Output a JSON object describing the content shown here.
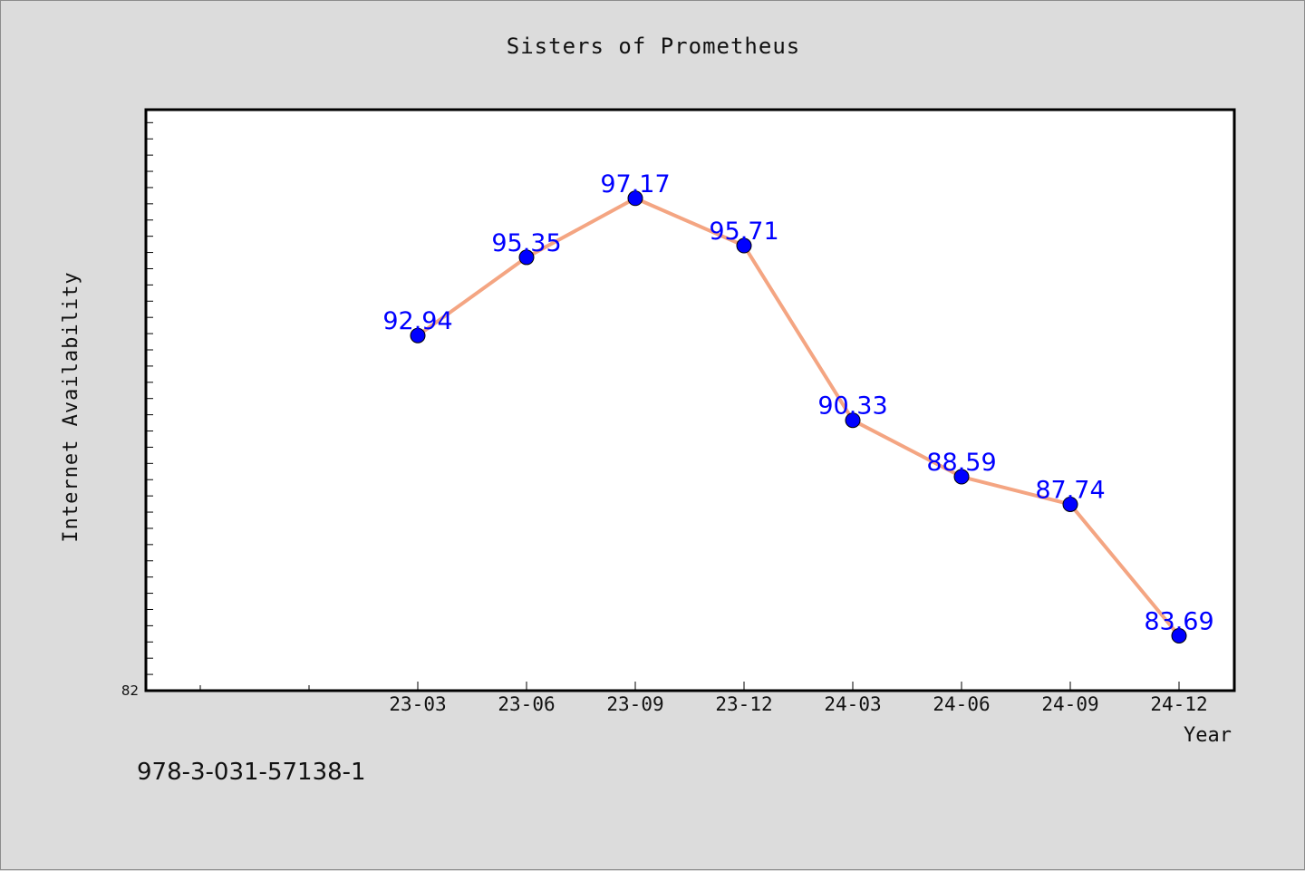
{
  "chart_data": {
    "type": "line",
    "title": "Sisters of Prometheus",
    "xlabel": "Year",
    "ylabel": "Internet Availability",
    "categories": [
      "23-03",
      "23-06",
      "23-09",
      "23-12",
      "24-03",
      "24-06",
      "24-09",
      "24-12"
    ],
    "series": [
      {
        "values": [
          92.94,
          95.35,
          97.17,
          95.71,
          90.33,
          88.59,
          87.74,
          83.69
        ]
      }
    ],
    "y_tick_labels": [
      "82"
    ],
    "ylim": [
      82,
      99.9
    ],
    "grid": false,
    "line_color": "#f4a582",
    "marker_color": "#0000ff",
    "label_color": "#0000ff"
  },
  "footer": {
    "isbn": "978-3-031-57138-1"
  }
}
